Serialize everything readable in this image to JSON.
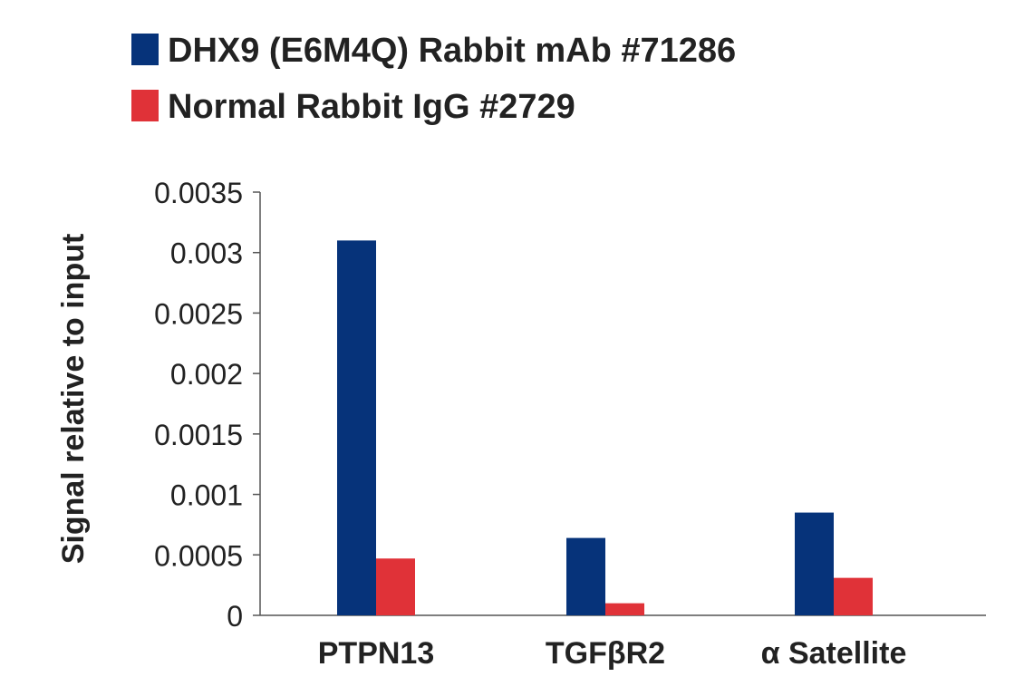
{
  "chart_data": {
    "type": "bar",
    "title": "",
    "xlabel": "",
    "ylabel": "Signal relative to input",
    "categories": [
      "PTPN13",
      "TGFβR2",
      "α Satellite"
    ],
    "series": [
      {
        "name": "DHX9 (E6M4Q) Rabbit mAb #71286",
        "color": "#06337a",
        "values": [
          0.0031,
          0.00064,
          0.00085
        ]
      },
      {
        "name": "Normal Rabbit IgG #2729",
        "color": "#e03238",
        "values": [
          0.00047,
          0.0001,
          0.00031
        ]
      }
    ],
    "ylim": [
      0,
      0.0035
    ],
    "yticks": [
      0,
      0.0005,
      0.001,
      0.0015,
      0.002,
      0.0025,
      0.003,
      0.0035
    ],
    "ytick_labels": [
      "0",
      "0.0005",
      "0.001",
      "0.0015",
      "0.002",
      "0.0025",
      "0.003",
      "0.0035"
    ],
    "grid": false,
    "legend_position": "top-left"
  }
}
